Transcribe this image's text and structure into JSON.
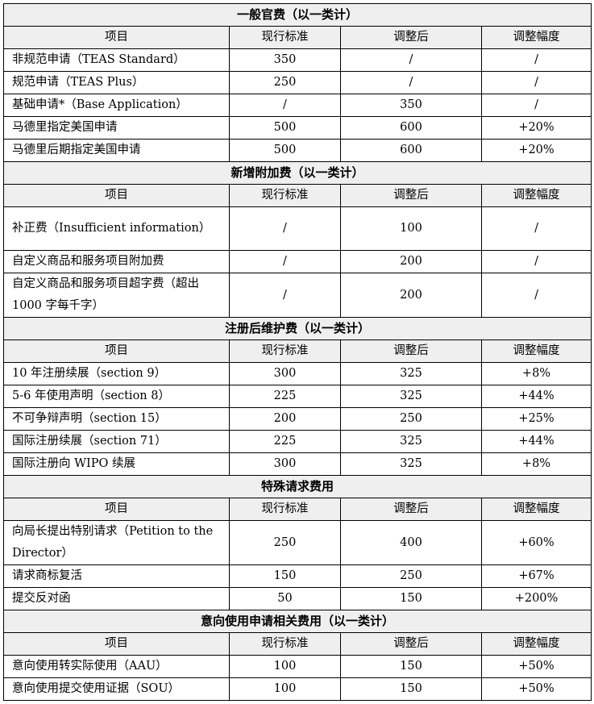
{
  "columns": [
    "项目",
    "现行标准",
    "调整后",
    "调整幅度"
  ],
  "sections": [
    {
      "title": "一般官费（以一类计）",
      "rows": [
        {
          "item": "非规范申请（TEAS Standard）",
          "current": "350",
          "adjusted": "/",
          "change": "/"
        },
        {
          "item": "规范申请（TEAS Plus）",
          "current": "250",
          "adjusted": "/",
          "change": "/"
        },
        {
          "item": "基础申请*（Base Application）",
          "current": "/",
          "adjusted": "350",
          "change": "/"
        },
        {
          "item": "马德里指定美国申请",
          "current": "500",
          "adjusted": "600",
          "change": "+20%"
        },
        {
          "item": "马德里后期指定美国申请",
          "current": "500",
          "adjusted": "600",
          "change": "+20%"
        }
      ]
    },
    {
      "title": "新增附加费（以一类计）",
      "rows": [
        {
          "item": "补正费（Insufficient information）",
          "current": "/",
          "adjusted": "100",
          "change": "/",
          "two": true
        },
        {
          "item": "自定义商品和服务项目附加费",
          "current": "/",
          "adjusted": "200",
          "change": "/"
        },
        {
          "item": "自定义商品和服务项目超字费（超出 1000 字每千字）",
          "current": "/",
          "adjusted": "200",
          "change": "/",
          "two": true
        }
      ]
    },
    {
      "title": "注册后维护费（以一类计）",
      "rows": [
        {
          "item": "10 年注册续展（section 9）",
          "current": "300",
          "adjusted": "325",
          "change": "+8%"
        },
        {
          "item": "5-6 年使用声明（section 8）",
          "current": "225",
          "adjusted": "325",
          "change": "+44%"
        },
        {
          "item": "不可争辩声明（section 15）",
          "current": "200",
          "adjusted": "250",
          "change": "+25%"
        },
        {
          "item": "国际注册续展（section 71）",
          "current": "225",
          "adjusted": "325",
          "change": "+44%"
        },
        {
          "item": "国际注册向 WIPO 续展",
          "current": "300",
          "adjusted": "325",
          "change": "+8%"
        }
      ]
    },
    {
      "title": "特殊请求费用",
      "rows": [
        {
          "item": "向局长提出特别请求（Petition to the Director）",
          "current": "250",
          "adjusted": "400",
          "change": "+60%",
          "two": true
        },
        {
          "item": "请求商标复活",
          "current": "150",
          "adjusted": "250",
          "change": "+67%"
        },
        {
          "item": "提交反对函",
          "current": "50",
          "adjusted": "150",
          "change": "+200%"
        }
      ]
    },
    {
      "title": "意向使用申请相关费用（以一类计）",
      "rows": [
        {
          "item": "意向使用转实际使用（AAU）",
          "current": "100",
          "adjusted": "150",
          "change": "+50%"
        },
        {
          "item": "意向使用提交使用证据（SOU）",
          "current": "100",
          "adjusted": "150",
          "change": "+50%"
        }
      ]
    }
  ]
}
